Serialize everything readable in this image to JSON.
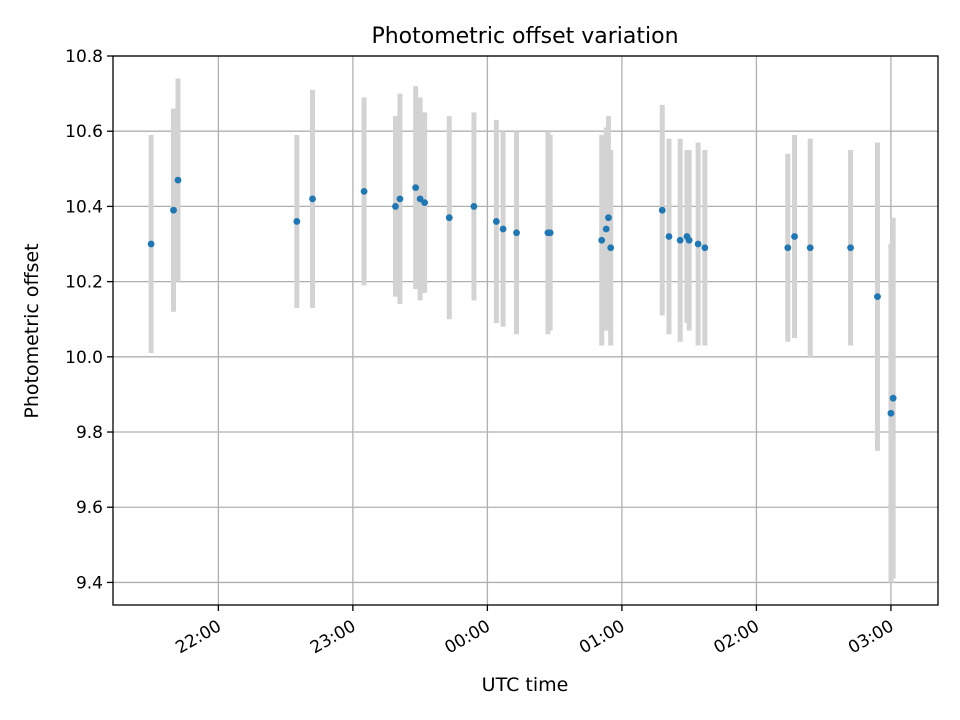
{
  "chart_data": {
    "type": "scatter",
    "title": "Photometric offset variation",
    "xlabel": "UTC time",
    "ylabel": "Photometric offset",
    "x_unit": "UTC time (HH:MM)",
    "xlim": [
      "21:13",
      "03:21"
    ],
    "ylim": [
      9.34,
      10.8
    ],
    "grid": true,
    "xticks": [
      "22:00",
      "23:00",
      "00:00",
      "01:00",
      "02:00",
      "03:00"
    ],
    "yticks": [
      9.4,
      9.6,
      9.8,
      10.0,
      10.2,
      10.4,
      10.6,
      10.8
    ],
    "colors": {
      "point": "#1f77b4",
      "errorbar": "#d3d3d3"
    },
    "series": [
      {
        "x": [
          "21:30",
          "21:40",
          "21:42",
          "22:35",
          "22:42",
          "23:05",
          "23:19",
          "23:21",
          "23:28",
          "23:30",
          "23:32",
          "23:43",
          "23:54",
          "00:04",
          "00:07",
          "00:13",
          "00:27",
          "00:28",
          "00:51",
          "00:53",
          "00:54",
          "00:55",
          "01:18",
          "01:21",
          "01:26",
          "01:29",
          "01:30",
          "01:34",
          "01:37",
          "02:14",
          "02:17",
          "02:24",
          "02:42",
          "02:54",
          "03:00",
          "03:01"
        ],
        "y": [
          10.3,
          10.39,
          10.47,
          10.36,
          10.42,
          10.44,
          10.4,
          10.42,
          10.45,
          10.42,
          10.41,
          10.37,
          10.4,
          10.36,
          10.34,
          10.33,
          10.33,
          10.33,
          10.31,
          10.34,
          10.37,
          10.29,
          10.39,
          10.32,
          10.31,
          10.32,
          10.31,
          10.3,
          10.29,
          10.29,
          10.32,
          10.29,
          10.29,
          10.16,
          9.85,
          9.89
        ],
        "yerr": [
          0.29,
          0.27,
          0.27,
          0.23,
          0.29,
          0.25,
          0.24,
          0.28,
          0.27,
          0.27,
          0.24,
          0.27,
          0.25,
          0.27,
          0.26,
          0.27,
          0.27,
          0.26,
          0.28,
          0.27,
          0.27,
          0.26,
          0.28,
          0.26,
          0.27,
          0.23,
          0.24,
          0.27,
          0.26,
          0.25,
          0.27,
          0.29,
          0.26,
          0.41,
          0.45,
          0.48
        ]
      }
    ]
  }
}
